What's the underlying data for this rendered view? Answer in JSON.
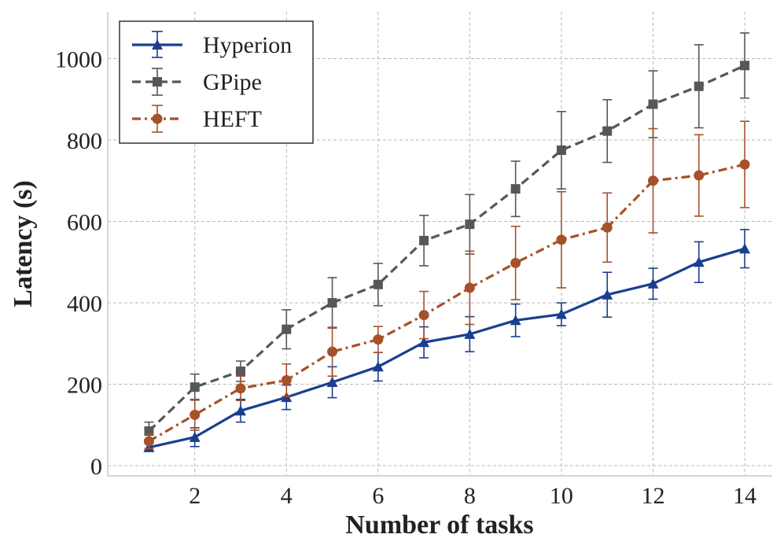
{
  "chart_data": {
    "type": "line",
    "title": "",
    "xlabel": "Number of tasks",
    "ylabel": "Latency (s)",
    "x": [
      1,
      2,
      3,
      4,
      5,
      6,
      7,
      8,
      9,
      10,
      11,
      12,
      13,
      14
    ],
    "xlim": [
      0.1,
      14.6
    ],
    "ylim": [
      -25,
      1115
    ],
    "xticks": [
      2,
      4,
      6,
      8,
      10,
      12,
      14
    ],
    "yticks": [
      0,
      200,
      400,
      600,
      800,
      1000
    ],
    "grid": true,
    "legend_position": "top-left",
    "series": [
      {
        "name": "Hyperion",
        "color": "#1a3f8f",
        "marker": "triangle",
        "linestyle": "solid",
        "values": [
          45,
          70,
          135,
          168,
          205,
          243,
          303,
          323,
          357,
          372,
          420,
          447,
          500,
          533
        ],
        "errors": [
          10,
          23,
          28,
          30,
          38,
          35,
          38,
          43,
          40,
          28,
          55,
          38,
          50,
          47
        ]
      },
      {
        "name": "GPipe",
        "color": "#575757",
        "marker": "square",
        "linestyle": "dashed",
        "values": [
          85,
          193,
          232,
          335,
          400,
          445,
          553,
          593,
          680,
          775,
          822,
          888,
          932,
          983
        ],
        "errors": [
          22,
          32,
          25,
          48,
          62,
          52,
          62,
          73,
          68,
          95,
          77,
          82,
          102,
          80
        ]
      },
      {
        "name": "HEFT",
        "color": "#a5512a",
        "marker": "circle",
        "linestyle": "dashdot",
        "values": [
          60,
          125,
          190,
          210,
          280,
          310,
          370,
          437,
          498,
          555,
          585,
          700,
          713,
          740
        ],
        "errors": [
          18,
          38,
          30,
          40,
          60,
          32,
          58,
          90,
          90,
          118,
          85,
          128,
          100,
          106
        ]
      }
    ]
  }
}
